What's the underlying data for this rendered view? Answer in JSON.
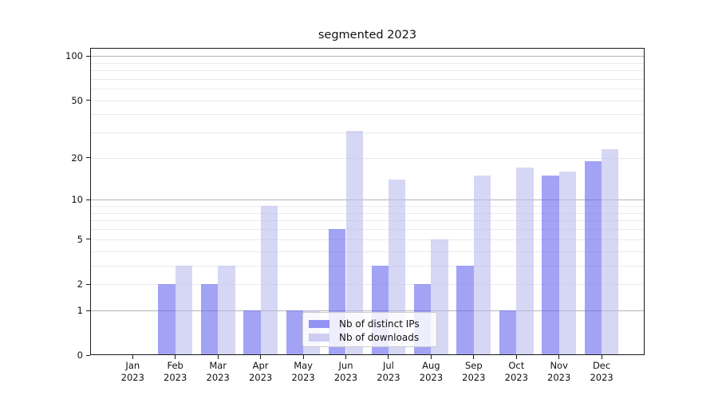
{
  "title": "segmented 2023",
  "legend": {
    "items": [
      "Nb of distinct IPs",
      "Nb of downloads"
    ]
  },
  "y_axis": {
    "tick_labels": [
      "100",
      "50",
      "20",
      "10",
      "5",
      "2",
      "1",
      "0"
    ]
  },
  "x_axis": {
    "year": "2023",
    "months": [
      "Jan",
      "Feb",
      "Mar",
      "Apr",
      "May",
      "Jun",
      "Jul",
      "Aug",
      "Sep",
      "Oct",
      "Nov",
      "Dec"
    ]
  },
  "colors": {
    "series_dark": "#6666ee",
    "series_light": "#bbbbee",
    "decade_gridline": "#b4b4b4",
    "minor_gridline": "#ebebeb"
  },
  "chart_data": {
    "type": "bar",
    "title": "segmented 2023",
    "categories": [
      "Jan 2023",
      "Feb 2023",
      "Mar 2023",
      "Apr 2023",
      "May 2023",
      "Jun 2023",
      "Jul 2023",
      "Aug 2023",
      "Sep 2023",
      "Oct 2023",
      "Nov 2023",
      "Dec 2023"
    ],
    "series": [
      {
        "name": "Nb of distinct IPs",
        "color": "#6666ee",
        "fill_alpha": 0.6,
        "values": [
          0,
          2,
          2,
          1,
          1,
          6,
          3,
          2,
          3,
          1,
          15,
          19
        ]
      },
      {
        "name": "Nb of downloads",
        "color": "#bbbbee",
        "fill_alpha": 0.6,
        "values": [
          0,
          3,
          3,
          9,
          1,
          31,
          14,
          5,
          15,
          17,
          16,
          23
        ]
      }
    ],
    "xlabel": "",
    "ylabel": "",
    "yscale": "log10(1+v)",
    "yticks": [
      0,
      1,
      2,
      5,
      10,
      20,
      50,
      100
    ],
    "minor_yticks": [
      3,
      4,
      6,
      7,
      8,
      9,
      30,
      40,
      60,
      70,
      80,
      90
    ],
    "ylim": [
      0,
      113
    ],
    "grid": true,
    "legend_position": "inside lower-center"
  }
}
